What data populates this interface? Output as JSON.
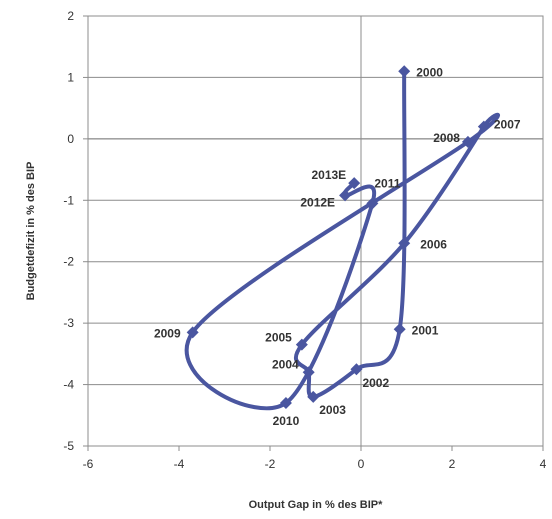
{
  "chart_data": {
    "type": "scatter",
    "title": "",
    "xlabel": "Output Gap in % des BIP*",
    "ylabel": "Budgetdefizit in % des BIP",
    "xlim": [
      -6,
      4
    ],
    "ylim": [
      -5,
      2
    ],
    "xticks": [
      -6,
      -4,
      -2,
      0,
      2,
      4
    ],
    "yticks": [
      -5,
      -4,
      -3,
      -2,
      -1,
      0,
      1,
      2
    ],
    "grid": "horizontal",
    "zero_lines": true,
    "series_color": "#4a56a0",
    "points": [
      {
        "label": "2000",
        "x": 0.95,
        "y": 1.1
      },
      {
        "label": "2001",
        "x": 0.85,
        "y": -3.1
      },
      {
        "label": "2002",
        "x": -0.1,
        "y": -3.75
      },
      {
        "label": "2003",
        "x": -1.05,
        "y": -4.2
      },
      {
        "label": "2004",
        "x": -1.15,
        "y": -3.8
      },
      {
        "label": "2005",
        "x": -1.3,
        "y": -3.35
      },
      {
        "label": "2006",
        "x": 0.95,
        "y": -1.7
      },
      {
        "label": "2007",
        "x": 2.7,
        "y": 0.2
      },
      {
        "label": "2008",
        "x": 2.35,
        "y": -0.05
      },
      {
        "label": "2009",
        "x": -3.7,
        "y": -3.15
      },
      {
        "label": "2010",
        "x": -1.65,
        "y": -4.3
      },
      {
        "label": "2011",
        "x": 0.25,
        "y": -1.05
      },
      {
        "label": "2012E",
        "x": -0.35,
        "y": -0.92
      },
      {
        "label": "2013E",
        "x": -0.15,
        "y": -0.72
      }
    ]
  }
}
